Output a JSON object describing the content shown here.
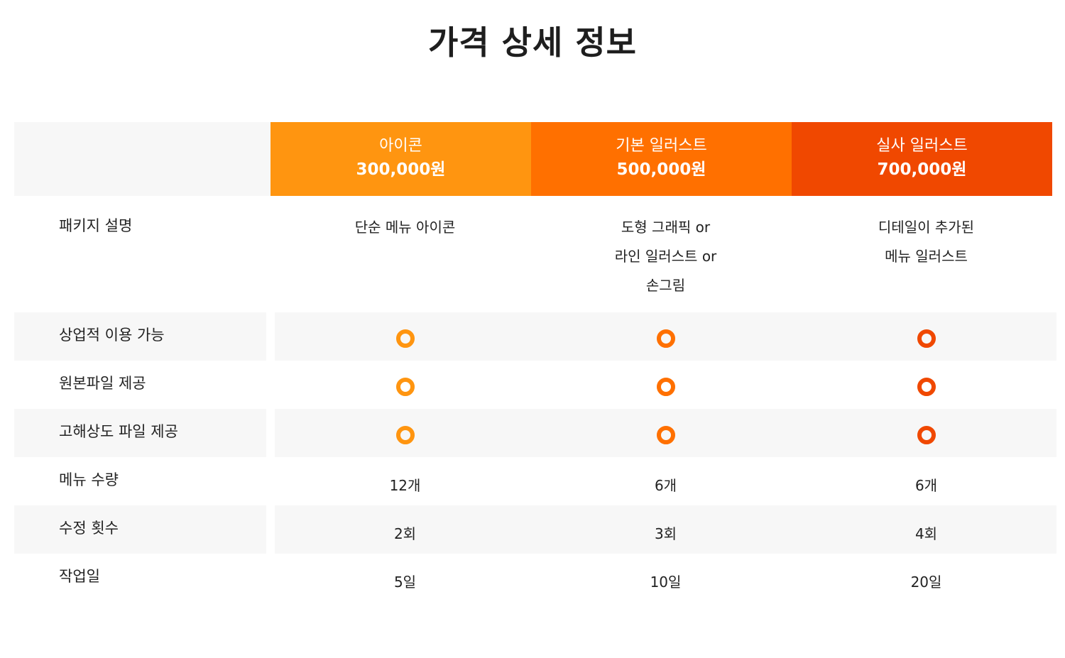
{
  "title": "가격 상세 정보",
  "colors": {
    "plan1": "#ff9510",
    "plan2": "#ff7000",
    "plan3": "#f04800",
    "row_shade": "#f7f7f7"
  },
  "plans": [
    {
      "name": "아이콘",
      "price": "300,000원"
    },
    {
      "name": "기본 일러스트",
      "price": "500,000원"
    },
    {
      "name": "실사 일러스트",
      "price": "700,000원"
    }
  ],
  "rows": {
    "description": {
      "label": "패키지 설명",
      "values": [
        "단순 메뉴 아이콘",
        "도형 그래픽 or\n라인 일러스트 or\n손그림",
        "디테일이 추가된\n메뉴 일러스트"
      ]
    },
    "commercial_use": {
      "label": "상업적 이용 가능",
      "icon": "circle-o-icon"
    },
    "source_file": {
      "label": "원본파일 제공",
      "icon": "circle-o-icon"
    },
    "hires_file": {
      "label": "고해상도 파일 제공",
      "icon": "circle-o-icon"
    },
    "menu_count": {
      "label": "메뉴 수량",
      "values": [
        "12개",
        "6개",
        "6개"
      ]
    },
    "revisions": {
      "label": "수정 횟수",
      "values": [
        "2회",
        "3회",
        "4회"
      ]
    },
    "work_days": {
      "label": "작업일",
      "values": [
        "5일",
        "10일",
        "20일"
      ]
    }
  }
}
